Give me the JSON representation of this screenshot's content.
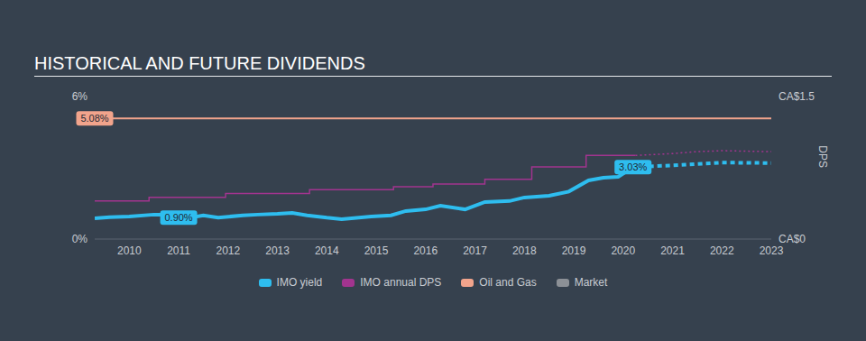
{
  "chart_data": {
    "type": "line",
    "title": "HISTORICAL AND FUTURE DIVIDENDS",
    "y2_label": "DPS",
    "xlim": [
      2009.3,
      2023
    ],
    "xticks": [
      2010,
      2011,
      2012,
      2013,
      2014,
      2015,
      2016,
      2017,
      2018,
      2019,
      2020,
      2021,
      2022,
      2023
    ],
    "ylim": [
      0,
      6
    ],
    "yticks": [
      {
        "value": 0,
        "label": "0%"
      },
      {
        "value": 6,
        "label": "6%"
      }
    ],
    "y2lim": [
      0,
      1.5
    ],
    "y2ticks": [
      {
        "value": 0,
        "label": "CA$0"
      },
      {
        "value": 1.5,
        "label": "CA$1.5"
      }
    ],
    "grid": false,
    "series": [
      {
        "name": "IMO yield",
        "color": "#2ebdef",
        "x": [
          2009.3,
          2009.6,
          2010,
          2010.5,
          2010.9,
          2011.05,
          2011.5,
          2011.8,
          2012.3,
          2012.6,
          2013,
          2013.3,
          2013.6,
          2014,
          2014.3,
          2014.9,
          2015.3,
          2015.6,
          2016,
          2016.3,
          2016.8,
          2017.2,
          2017.7,
          2018,
          2018.5,
          2018.9,
          2019.3,
          2019.6,
          2019.9,
          2020.2
        ],
        "values": [
          0.87,
          0.92,
          0.95,
          1.03,
          1.03,
          0.84,
          1.0,
          0.9,
          1.0,
          1.03,
          1.06,
          1.1,
          1.0,
          0.9,
          0.84,
          0.95,
          1.0,
          1.18,
          1.25,
          1.4,
          1.25,
          1.56,
          1.6,
          1.75,
          1.82,
          2.0,
          2.47,
          2.58,
          2.62,
          3.03
        ]
      },
      {
        "name": "IMO yield",
        "color": "#2ebdef",
        "line_style": "dashed",
        "x": [
          2020.2,
          2021,
          2022,
          2023
        ],
        "values": [
          3.03,
          3.1,
          3.22,
          3.2
        ]
      },
      {
        "name": "IMO annual DPS",
        "color": "#a2348f",
        "axis": "y2",
        "type": "step",
        "x": [
          2009.3,
          2010.4,
          2011.95,
          2013.65,
          2015.35,
          2016.15,
          2017.2,
          2018.15,
          2019.25,
          2020.25
        ],
        "values": [
          0.4,
          0.44,
          0.48,
          0.52,
          0.55,
          0.58,
          0.63,
          0.76,
          0.88,
          0.88
        ]
      },
      {
        "name": "IMO annual DPS",
        "color": "#a2348f",
        "axis": "y2",
        "line_style": "dotted",
        "x": [
          2020.25,
          2021,
          2021.5,
          2022,
          2023
        ],
        "values": [
          0.88,
          0.9,
          0.92,
          0.93,
          0.92
        ]
      },
      {
        "name": "Oil and Gas",
        "color": "#f2a48c",
        "x": [
          2009.3,
          2023
        ],
        "values": [
          5.08,
          5.08
        ]
      },
      {
        "name": "Market",
        "color": "#8c9096",
        "x": [],
        "values": []
      }
    ],
    "annotations": [
      {
        "text": "5.08%",
        "x": 2009.3,
        "y": 5.08,
        "color": "#f2a48c"
      },
      {
        "text": "0.90%",
        "x": 2011.0,
        "y": 0.9,
        "color": "#2ebdef"
      },
      {
        "text": "3.03%",
        "x": 2020.2,
        "y": 3.03,
        "color": "#2ebdef"
      }
    ]
  }
}
